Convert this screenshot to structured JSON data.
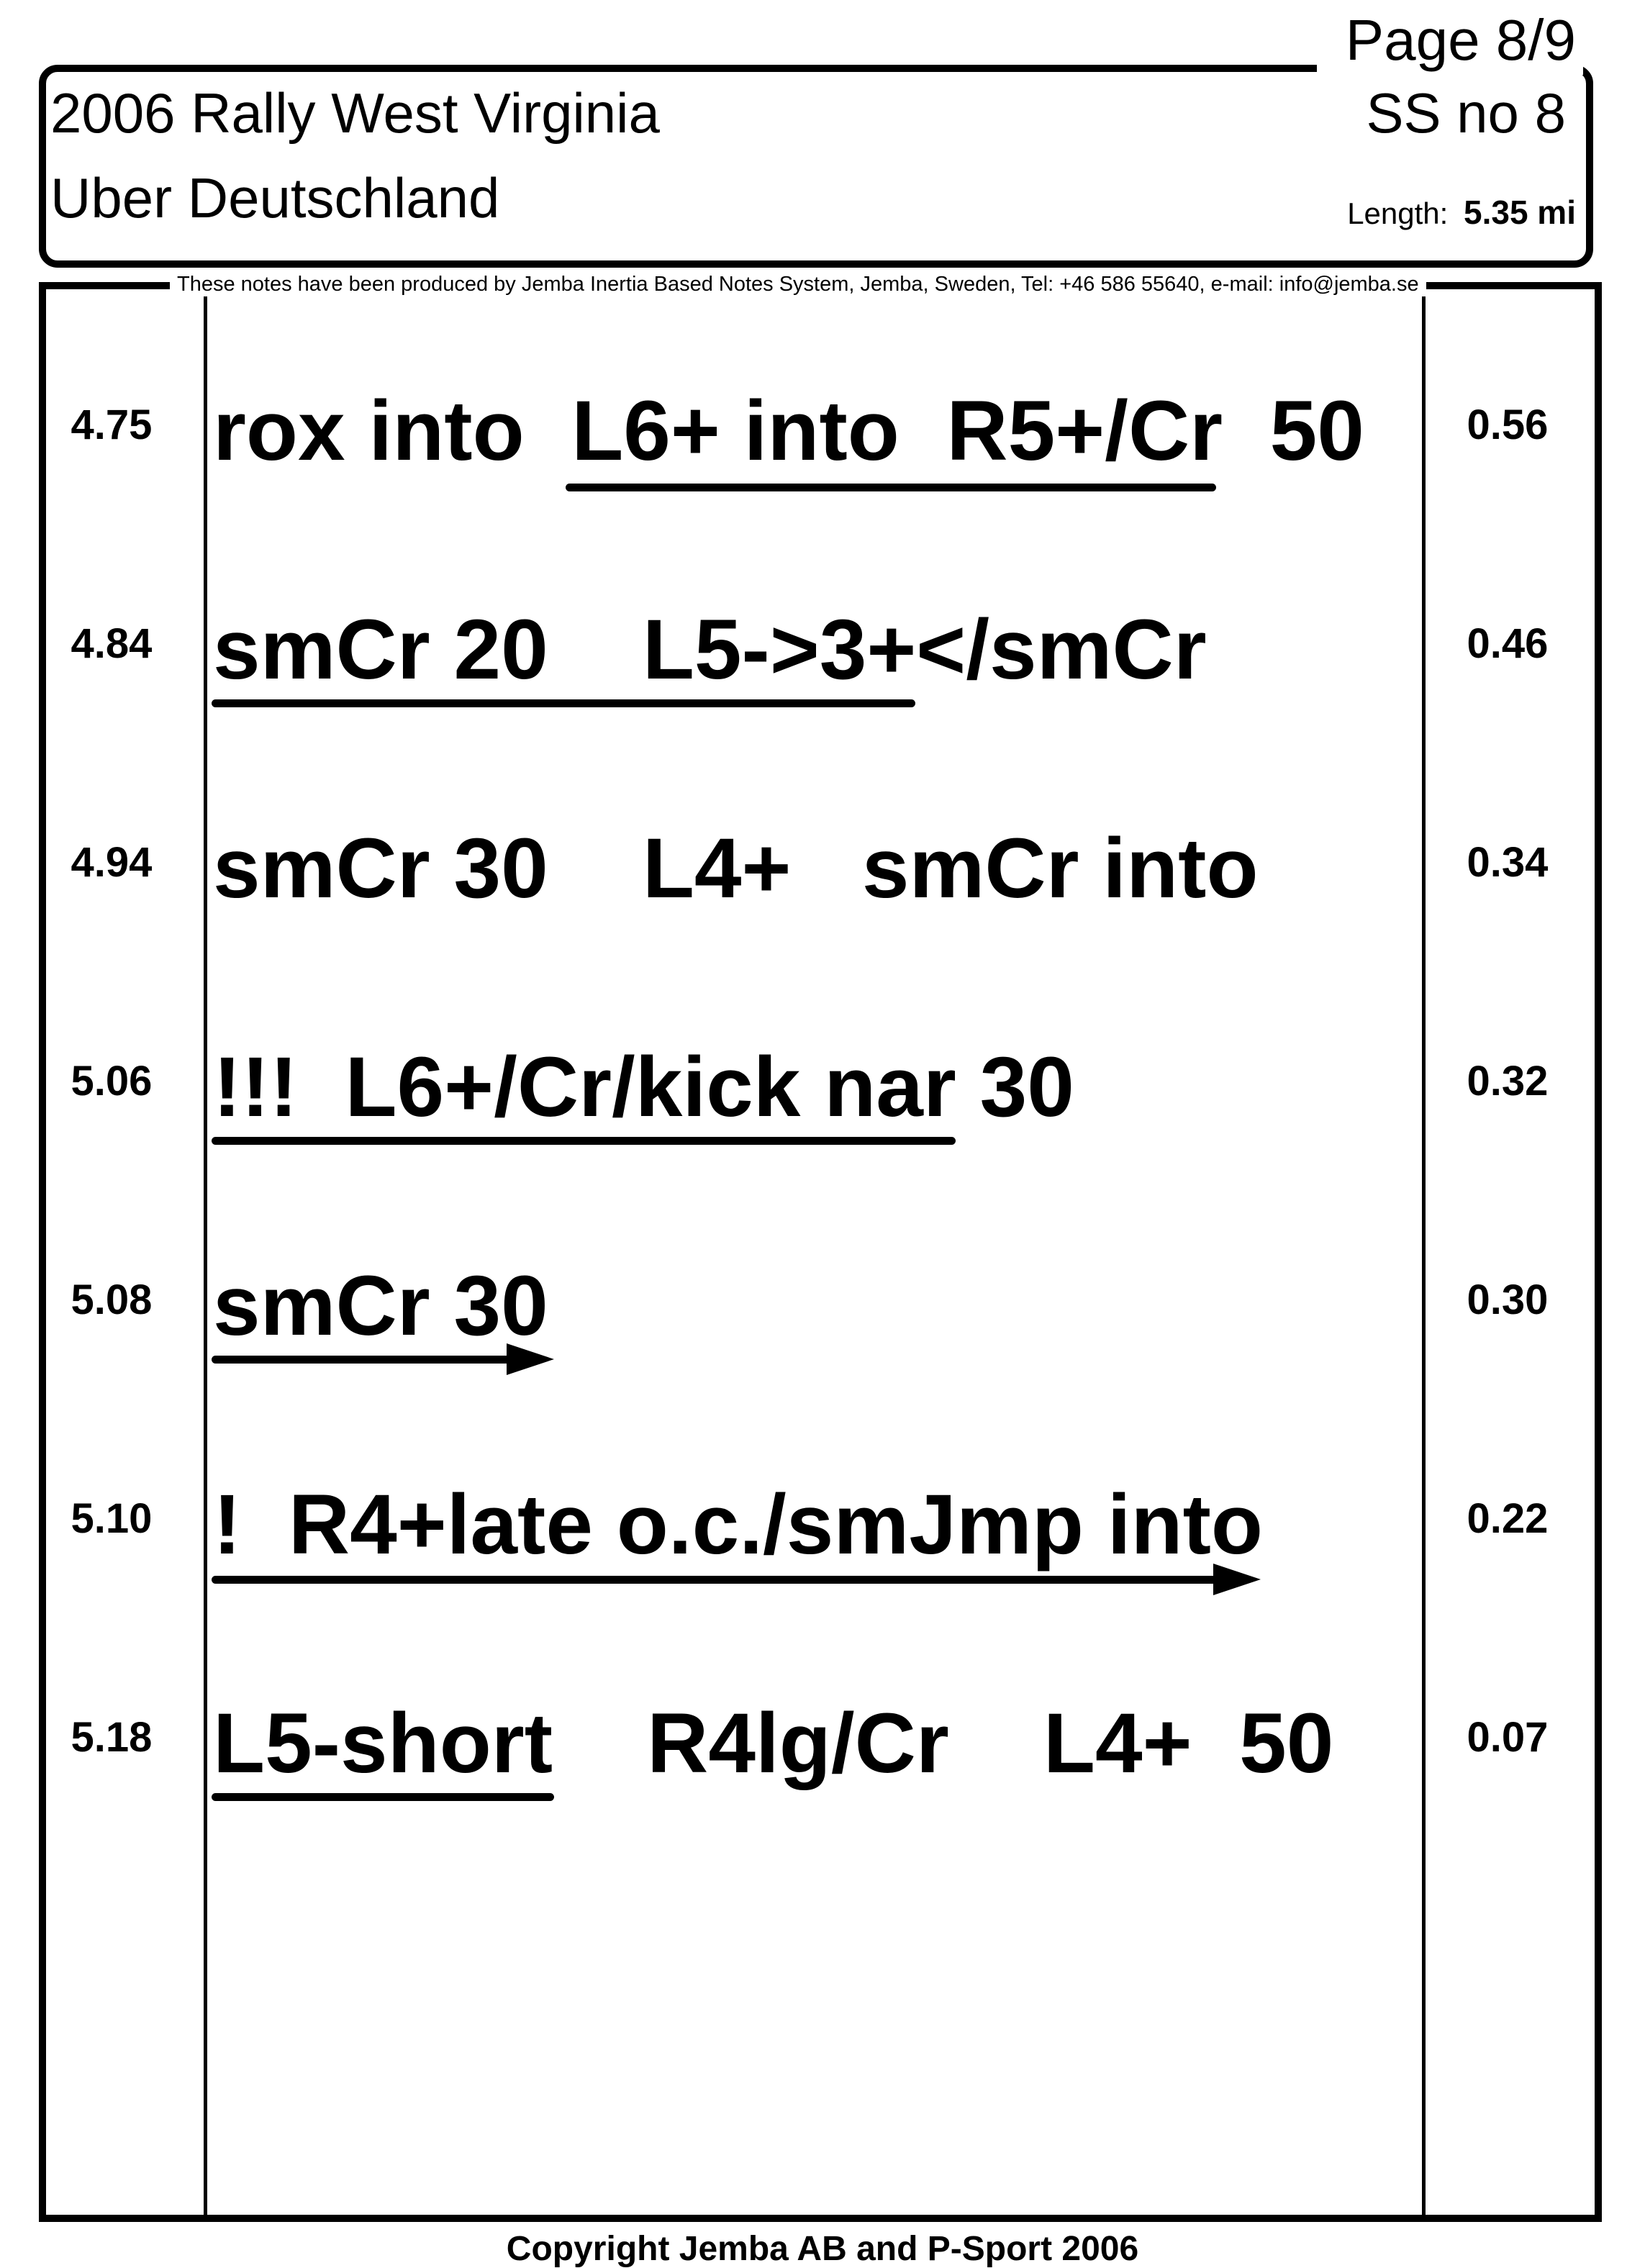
{
  "header": {
    "page_label": "Page 8/9",
    "event_title": "2006 Rally West Virginia",
    "stage_name": "Uber Deutschland",
    "stage_no": "SS no 8",
    "length_label": "Length:",
    "length_value": "5.35 mi"
  },
  "producer_note": "These notes have been produced by Jemba Inertia Based Notes System, Jemba, Sweden, Tel: +46 586 55640, e-mail: info@jemba.se",
  "rows": [
    {
      "dist": "4.75",
      "note": "rox into  L6+ into  R5+/Cr  50",
      "remaining": "0.56"
    },
    {
      "dist": "4.84",
      "note": "smCr 20    L5->3+</smCr",
      "remaining": "0.46"
    },
    {
      "dist": "4.94",
      "note": "smCr 30    L4+   smCr into",
      "remaining": "0.34"
    },
    {
      "dist": "5.06",
      "note": "!!!  L6+/Cr/kick nar 30",
      "remaining": "0.32"
    },
    {
      "dist": "5.08",
      "note": "smCr 30",
      "remaining": "0.30"
    },
    {
      "dist": "5.10",
      "note": "!  R4+late o.c./smJmp into",
      "remaining": "0.22"
    },
    {
      "dist": "5.18",
      "note": "L5-short    R4lg/Cr    L4+  50",
      "remaining": "0.07"
    }
  ],
  "footer": {
    "copyright": "Copyright Jemba AB and P-Sport 2006"
  }
}
